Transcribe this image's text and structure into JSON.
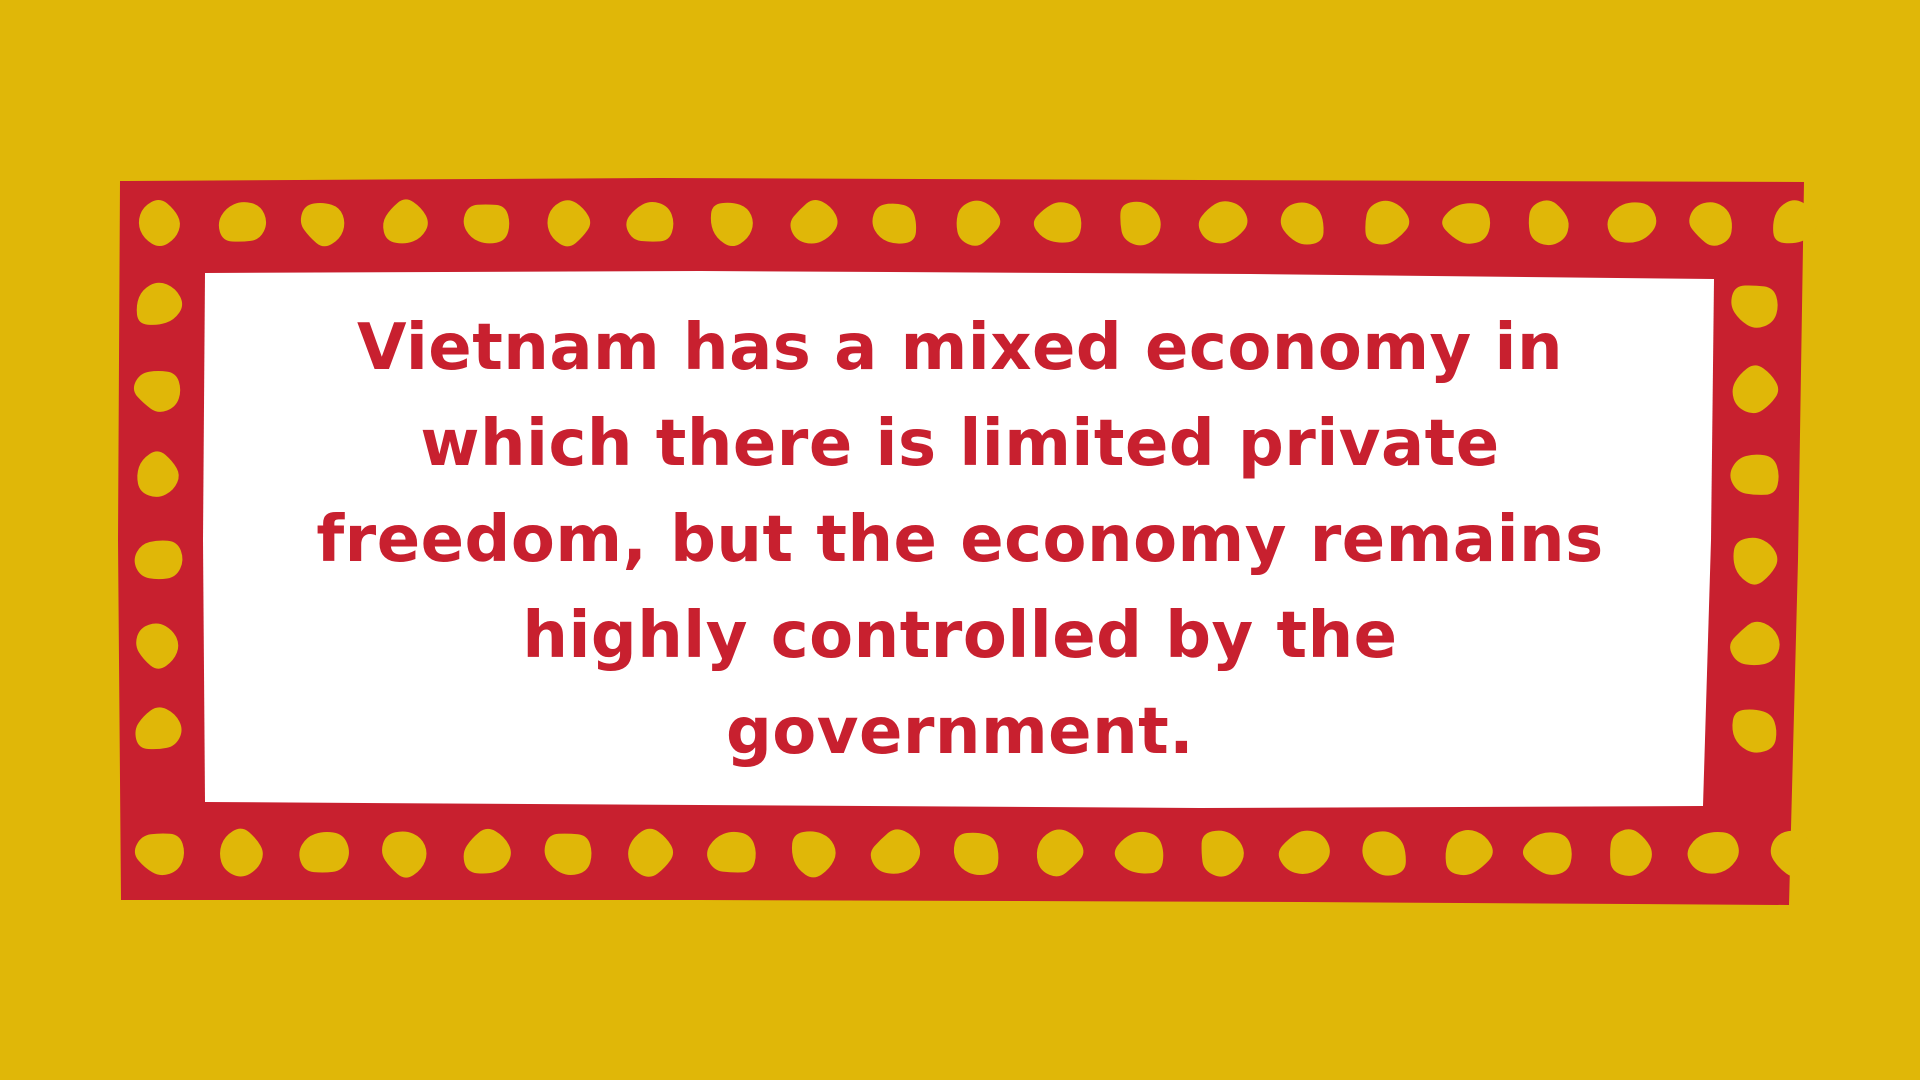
{
  "colors": {
    "background": "#E0B708",
    "frame": "#C8202F",
    "dots": "#E0B708",
    "panel": "#FFFFFF",
    "text": "#C8202F"
  },
  "quote": {
    "text": "Vietnam has a mixed economy in which there is limited private freedom, but the economy remains highly controlled by the government."
  }
}
